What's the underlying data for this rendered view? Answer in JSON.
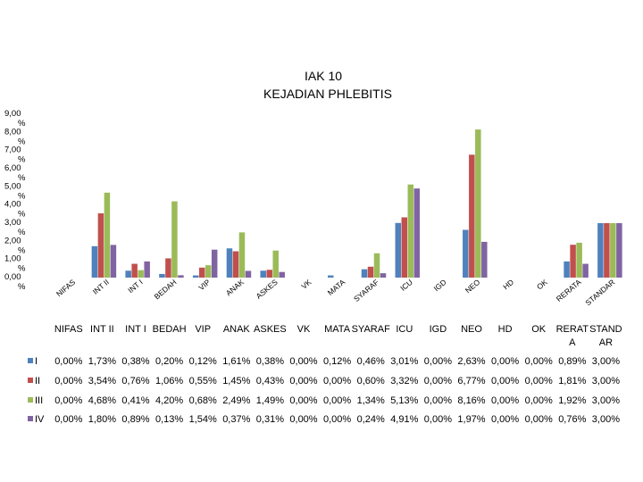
{
  "chart_data": {
    "type": "bar",
    "title": "IAK 10",
    "subtitle": "KEJADIAN PHLEBITIS",
    "ylim": [
      0,
      9
    ],
    "y_ticks": [
      "0,00 %",
      "1,00 %",
      "2,00 %",
      "3,00 %",
      "4,00 %",
      "5,00 %",
      "6,00 %",
      "7,00 %",
      "8,00 %",
      "9,00 %"
    ],
    "y_tick_values": [
      0,
      1,
      2,
      3,
      4,
      5,
      6,
      7,
      8,
      9
    ],
    "grid": false,
    "categories": [
      "NIFAS",
      "INT II",
      "INT I",
      "BEDAH",
      "VIP",
      "ANAK",
      "ASKES",
      "VK",
      "MATA",
      "SYARAF",
      "ICU",
      "IGD",
      "NEO",
      "HD",
      "OK",
      "RERATA",
      "STANDAR"
    ],
    "table_headers": [
      "NIFAS",
      "INT II",
      "INT I",
      "BEDAH",
      "VIP",
      "ANAK",
      "ASKES",
      "VK",
      "MATA",
      "SYARAF",
      "ICU",
      "IGD",
      "NEO",
      "HD",
      "OK",
      "RERAT A",
      "STAND AR"
    ],
    "series": [
      {
        "name": "I",
        "color": "#4F81BD",
        "values": [
          0,
          1.73,
          0.38,
          0.2,
          0.12,
          1.61,
          0.38,
          0,
          0.12,
          0.46,
          3.01,
          0,
          2.63,
          0,
          0,
          0.89,
          3.0
        ],
        "labels": [
          "0,00%",
          "1,73%",
          "0,38%",
          "0,20%",
          "0,12%",
          "1,61%",
          "0,38%",
          "0,00%",
          "0,12%",
          "0,46%",
          "3,01%",
          "0,00%",
          "2,63%",
          "0,00%",
          "0,00%",
          "0,89%",
          "3,00%"
        ]
      },
      {
        "name": "II",
        "color": "#C0504D",
        "values": [
          0,
          3.54,
          0.76,
          1.06,
          0.55,
          1.45,
          0.43,
          0,
          0,
          0.6,
          3.32,
          0,
          6.77,
          0,
          0,
          1.81,
          3.0
        ],
        "labels": [
          "0,00%",
          "3,54%",
          "0,76%",
          "1,06%",
          "0,55%",
          "1,45%",
          "0,43%",
          "0,00%",
          "0,00%",
          "0,60%",
          "3,32%",
          "0,00%",
          "6,77%",
          "0,00%",
          "0,00%",
          "1,81%",
          "3,00%"
        ]
      },
      {
        "name": "III",
        "color": "#9BBB59",
        "values": [
          0,
          4.68,
          0.41,
          4.2,
          0.68,
          2.49,
          1.49,
          0,
          0,
          1.34,
          5.13,
          0,
          8.16,
          0,
          0,
          1.92,
          3.0
        ],
        "labels": [
          "0,00%",
          "4,68%",
          "0,41%",
          "4,20%",
          "0,68%",
          "2,49%",
          "1,49%",
          "0,00%",
          "0,00%",
          "1,34%",
          "5,13%",
          "0,00%",
          "8,16%",
          "0,00%",
          "0,00%",
          "1,92%",
          "3,00%"
        ]
      },
      {
        "name": "IV",
        "color": "#8064A2",
        "values": [
          0,
          1.8,
          0.89,
          0.13,
          1.54,
          0.37,
          0.31,
          0,
          0,
          0.24,
          4.91,
          0,
          1.97,
          0,
          0,
          0.76,
          3.0
        ],
        "labels": [
          "0,00%",
          "1,80%",
          "0,89%",
          "0,13%",
          "1,54%",
          "0,37%",
          "0,31%",
          "0,00%",
          "0,00%",
          "0,24%",
          "4,91%",
          "0,00%",
          "1,97%",
          "0,00%",
          "0,00%",
          "0,76%",
          "3,00%"
        ]
      }
    ]
  }
}
